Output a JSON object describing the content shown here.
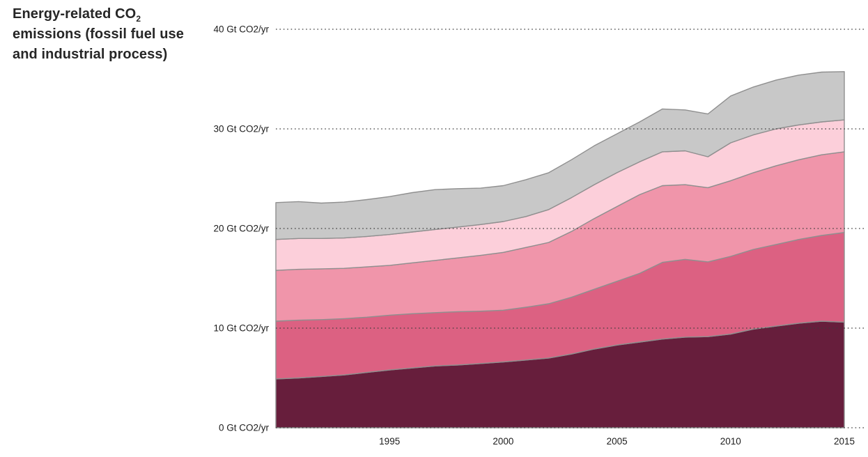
{
  "title": {
    "line1_pre": "Energy-related CO",
    "line1_sub": "2",
    "line2": "emissions (fossil fuel use",
    "line3": "and industrial process)"
  },
  "chart_data": {
    "type": "area",
    "stacked": true,
    "title": "Energy-related CO2 emissions (fossil fuel use and industrial process)",
    "xlabel": "",
    "ylabel": "Gt CO2/yr",
    "x": [
      1990,
      1991,
      1992,
      1993,
      1994,
      1995,
      1996,
      1997,
      1998,
      1999,
      2000,
      2001,
      2002,
      2003,
      2004,
      2005,
      2006,
      2007,
      2008,
      2009,
      2010,
      2011,
      2012,
      2013,
      2014,
      2015
    ],
    "series": [
      {
        "name": "layer-1-dark-maroon",
        "color": "#671e3c",
        "values": [
          4.9,
          5.0,
          5.15,
          5.3,
          5.55,
          5.8,
          6.0,
          6.2,
          6.3,
          6.45,
          6.6,
          6.8,
          7.0,
          7.4,
          7.9,
          8.3,
          8.6,
          8.9,
          9.1,
          9.15,
          9.4,
          9.9,
          10.2,
          10.5,
          10.7,
          10.6
        ]
      },
      {
        "name": "layer-2-rose",
        "color": "#dc6182",
        "values": [
          5.8,
          5.8,
          5.7,
          5.65,
          5.55,
          5.5,
          5.45,
          5.35,
          5.35,
          5.25,
          5.2,
          5.3,
          5.45,
          5.7,
          6.0,
          6.4,
          6.9,
          7.7,
          7.8,
          7.5,
          7.8,
          8.0,
          8.2,
          8.4,
          8.6,
          9.0
        ]
      },
      {
        "name": "layer-3-medium-pink",
        "color": "#f095aa",
        "values": [
          5.1,
          5.1,
          5.1,
          5.05,
          5.05,
          5.0,
          5.1,
          5.25,
          5.4,
          5.6,
          5.8,
          6.0,
          6.15,
          6.6,
          7.1,
          7.5,
          7.9,
          7.7,
          7.5,
          7.45,
          7.6,
          7.7,
          7.9,
          8.0,
          8.1,
          8.1
        ]
      },
      {
        "name": "layer-4-light-pink",
        "color": "#fccfda",
        "values": [
          3.1,
          3.1,
          3.05,
          3.05,
          3.05,
          3.1,
          3.1,
          3.1,
          3.1,
          3.1,
          3.1,
          3.1,
          3.3,
          3.4,
          3.4,
          3.4,
          3.3,
          3.4,
          3.4,
          3.1,
          3.8,
          3.8,
          3.7,
          3.5,
          3.3,
          3.2
        ]
      },
      {
        "name": "layer-5-gray",
        "color": "#c8c8c8",
        "values": [
          3.7,
          3.7,
          3.55,
          3.6,
          3.7,
          3.8,
          3.95,
          4.0,
          3.85,
          3.65,
          3.6,
          3.7,
          3.7,
          3.8,
          3.9,
          3.9,
          4.0,
          4.3,
          4.1,
          4.3,
          4.7,
          4.8,
          4.9,
          5.0,
          5.0,
          4.85
        ]
      }
    ],
    "y_ticks": [
      {
        "value": 0,
        "label": "0 Gt CO2/yr"
      },
      {
        "value": 10,
        "label": "10 Gt CO2/yr"
      },
      {
        "value": 20,
        "label": "20 Gt CO2/yr"
      },
      {
        "value": 30,
        "label": "30 Gt CO2/yr"
      },
      {
        "value": 40,
        "label": "40 Gt CO2/yr"
      }
    ],
    "x_ticks": [
      {
        "value": 1995,
        "label": "1995"
      },
      {
        "value": 2000,
        "label": "2000"
      },
      {
        "value": 2005,
        "label": "2005"
      },
      {
        "value": 2010,
        "label": "2010"
      },
      {
        "value": 2015,
        "label": "2015"
      }
    ],
    "xlim": [
      1990,
      2015
    ],
    "ylim": [
      0,
      40
    ],
    "grid": "dotted-horizontal",
    "legend": "none",
    "outline_color": "#8f8f8f",
    "grid_color": "#3c3c3c"
  }
}
